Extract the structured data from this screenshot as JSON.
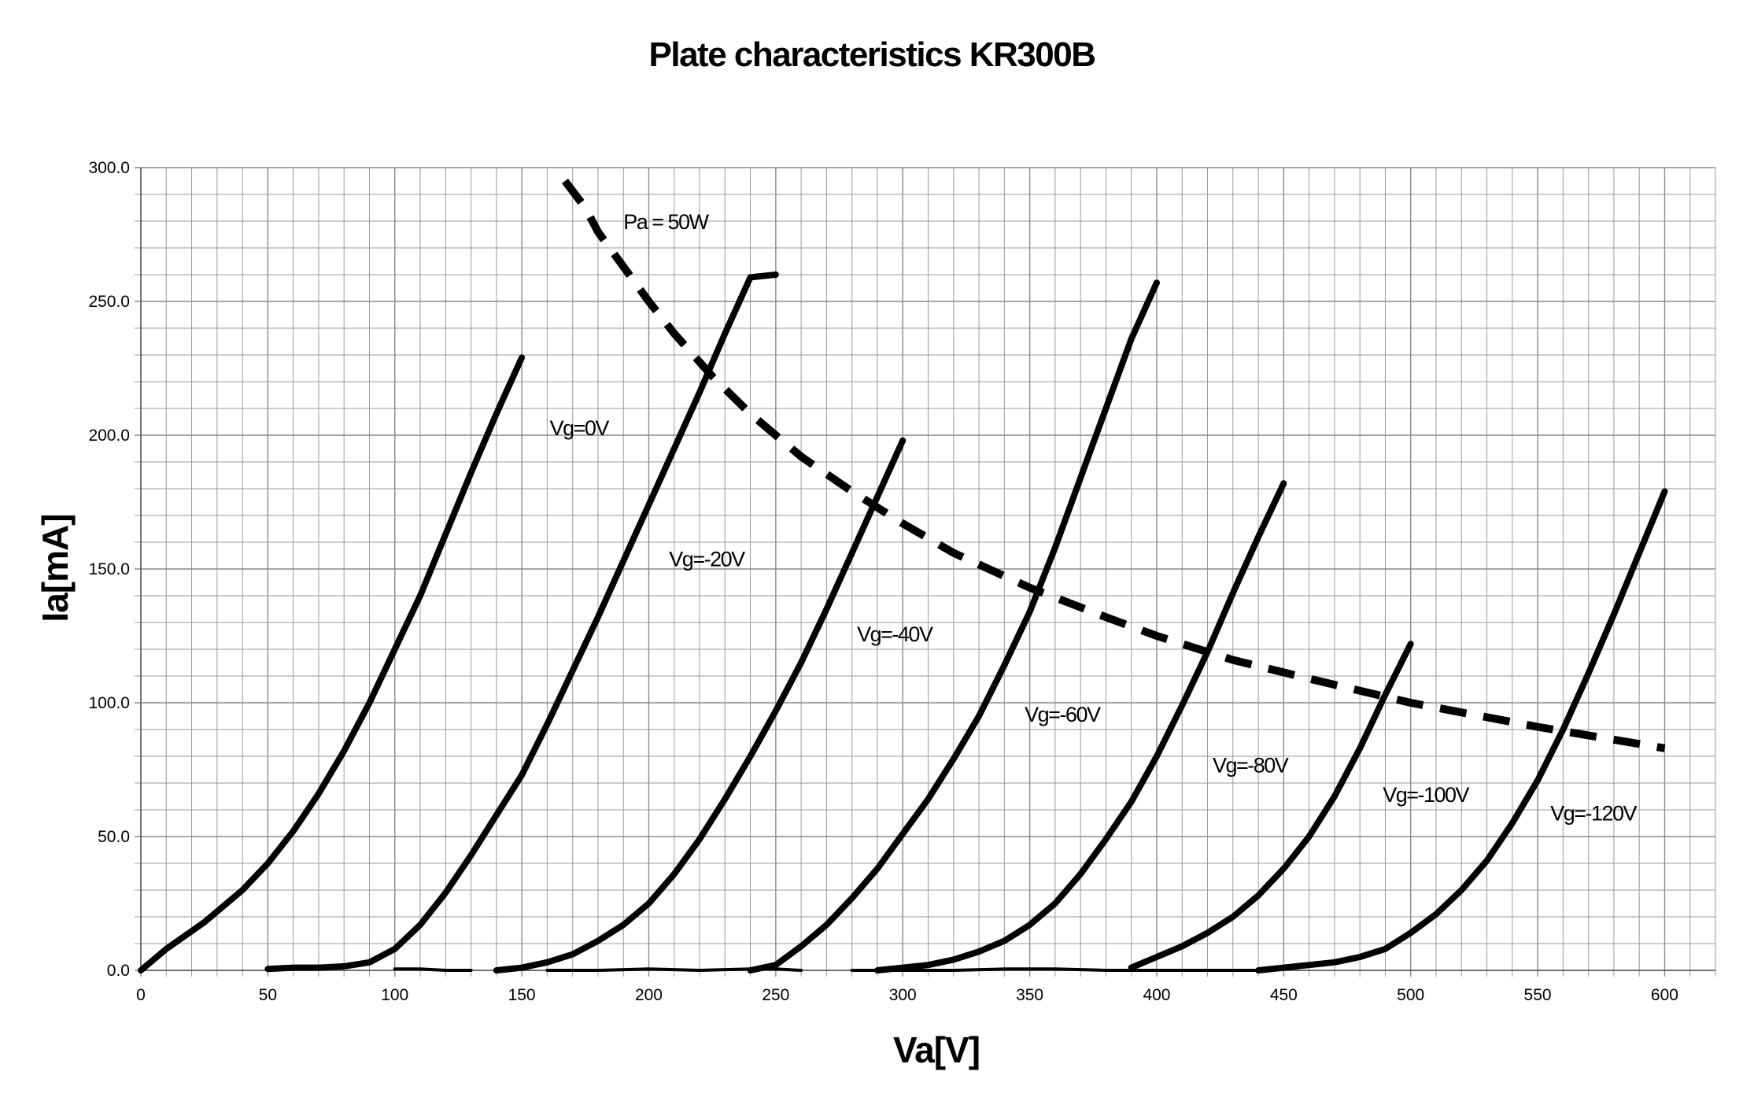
{
  "chart_data": {
    "type": "line",
    "title": "Plate characteristics KR300B",
    "xlabel": "Va[V]",
    "ylabel": "Ia[mA]",
    "xlim": [
      0,
      620
    ],
    "ylim": [
      0,
      300
    ],
    "x_ticks": [
      0,
      50,
      100,
      150,
      200,
      250,
      300,
      350,
      400,
      450,
      500,
      550,
      600
    ],
    "y_ticks": [
      0,
      50,
      100,
      150,
      200,
      250,
      300
    ],
    "x_tick_labels": [
      "0",
      "50",
      "100",
      "150",
      "200",
      "250",
      "300",
      "350",
      "400",
      "450",
      "500",
      "550",
      "600"
    ],
    "y_tick_labels": [
      "0.0",
      "50.0",
      "100.0",
      "150.0",
      "200.0",
      "250.0",
      "300.0"
    ],
    "grid": true,
    "legend": "none",
    "series": [
      {
        "label": "Vg=0V",
        "style": "solid",
        "points": [
          [
            0,
            0
          ],
          [
            10,
            8
          ],
          [
            25,
            18
          ],
          [
            40,
            30
          ],
          [
            50,
            40
          ],
          [
            60,
            52
          ],
          [
            70,
            66
          ],
          [
            80,
            82
          ],
          [
            90,
            100
          ],
          [
            100,
            120
          ],
          [
            110,
            140
          ],
          [
            120,
            163
          ],
          [
            130,
            186
          ],
          [
            140,
            208
          ],
          [
            150,
            229
          ]
        ],
        "cutoff": []
      },
      {
        "label": "Vg=-20V",
        "style": "solid",
        "points": [
          [
            50,
            0.5
          ],
          [
            60,
            1
          ],
          [
            70,
            1
          ],
          [
            80,
            1.5
          ],
          [
            90,
            3
          ],
          [
            100,
            8
          ],
          [
            110,
            17
          ],
          [
            120,
            29
          ],
          [
            130,
            43
          ],
          [
            140,
            58
          ],
          [
            150,
            73
          ],
          [
            160,
            92
          ],
          [
            170,
            112
          ],
          [
            180,
            132
          ],
          [
            190,
            153
          ],
          [
            200,
            174
          ],
          [
            210,
            195
          ],
          [
            220,
            216
          ],
          [
            230,
            238
          ],
          [
            240,
            259
          ],
          [
            250,
            260
          ]
        ],
        "cutoff": [
          [
            100,
            0.5
          ],
          [
            110,
            0.5
          ],
          [
            120,
            0
          ],
          [
            130,
            0
          ]
        ]
      },
      {
        "label": "Vg=-40V",
        "style": "solid",
        "points": [
          [
            140,
            0
          ],
          [
            150,
            1
          ],
          [
            160,
            3
          ],
          [
            170,
            6
          ],
          [
            180,
            11
          ],
          [
            190,
            17
          ],
          [
            200,
            25
          ],
          [
            210,
            36
          ],
          [
            220,
            49
          ],
          [
            230,
            64
          ],
          [
            240,
            80
          ],
          [
            250,
            97
          ],
          [
            260,
            115
          ],
          [
            270,
            135
          ],
          [
            280,
            156
          ],
          [
            290,
            177
          ],
          [
            300,
            198
          ]
        ],
        "cutoff": [
          [
            160,
            0
          ],
          [
            180,
            0
          ],
          [
            200,
            0.5
          ],
          [
            220,
            0
          ],
          [
            240,
            0.5
          ],
          [
            250,
            0.5
          ],
          [
            260,
            0
          ]
        ]
      },
      {
        "label": "Vg=-60V",
        "style": "solid",
        "points": [
          [
            240,
            0
          ],
          [
            250,
            2
          ],
          [
            260,
            9
          ],
          [
            270,
            17
          ],
          [
            280,
            27
          ],
          [
            290,
            38
          ],
          [
            300,
            51
          ],
          [
            310,
            64
          ],
          [
            320,
            79
          ],
          [
            330,
            95
          ],
          [
            340,
            114
          ],
          [
            350,
            134
          ],
          [
            360,
            158
          ],
          [
            370,
            184
          ],
          [
            380,
            210
          ],
          [
            390,
            236
          ],
          [
            400,
            257
          ]
        ],
        "cutoff": [
          [
            280,
            0
          ],
          [
            300,
            0
          ],
          [
            320,
            0
          ],
          [
            340,
            0.5
          ],
          [
            360,
            0.5
          ],
          [
            380,
            0
          ],
          [
            390,
            0
          ]
        ]
      },
      {
        "label": "Vg=-80V",
        "style": "solid",
        "points": [
          [
            290,
            0
          ],
          [
            300,
            1
          ],
          [
            310,
            2
          ],
          [
            320,
            4
          ],
          [
            330,
            7
          ],
          [
            340,
            11
          ],
          [
            350,
            17
          ],
          [
            360,
            25
          ],
          [
            370,
            36
          ],
          [
            380,
            49
          ],
          [
            390,
            63
          ],
          [
            400,
            80
          ],
          [
            410,
            99
          ],
          [
            420,
            119
          ],
          [
            430,
            141
          ],
          [
            440,
            162
          ],
          [
            450,
            182
          ]
        ],
        "cutoff": [
          [
            390,
            0
          ],
          [
            400,
            0
          ],
          [
            410,
            0
          ]
        ]
      },
      {
        "label": "Vg=-100V",
        "style": "solid",
        "points": [
          [
            390,
            1
          ],
          [
            400,
            5
          ],
          [
            410,
            9
          ],
          [
            420,
            14
          ],
          [
            430,
            20
          ],
          [
            440,
            28
          ],
          [
            450,
            38
          ],
          [
            460,
            50
          ],
          [
            470,
            65
          ],
          [
            480,
            83
          ],
          [
            490,
            103
          ],
          [
            500,
            122
          ]
        ],
        "cutoff": [
          [
            400,
            0
          ],
          [
            420,
            0
          ],
          [
            440,
            0
          ]
        ]
      },
      {
        "label": "Vg=-120V",
        "style": "solid",
        "points": [
          [
            440,
            0
          ],
          [
            450,
            1
          ],
          [
            460,
            2
          ],
          [
            470,
            3
          ],
          [
            480,
            5
          ],
          [
            490,
            8
          ],
          [
            500,
            14
          ],
          [
            510,
            21
          ],
          [
            520,
            30
          ],
          [
            530,
            41
          ],
          [
            540,
            55
          ],
          [
            550,
            71
          ],
          [
            560,
            90
          ],
          [
            570,
            111
          ],
          [
            580,
            133
          ],
          [
            590,
            156
          ],
          [
            600,
            179
          ]
        ],
        "cutoff": []
      },
      {
        "label": "Pa = 50W",
        "style": "dashed",
        "points": [
          [
            167,
            295
          ],
          [
            175,
            285
          ],
          [
            180,
            276
          ],
          [
            190,
            263
          ],
          [
            200,
            250
          ],
          [
            210,
            238
          ],
          [
            225,
            222
          ],
          [
            240,
            208
          ],
          [
            260,
            192
          ],
          [
            280,
            179
          ],
          [
            300,
            167
          ],
          [
            320,
            156
          ],
          [
            350,
            143
          ],
          [
            380,
            132
          ],
          [
            400,
            125
          ],
          [
            430,
            116
          ],
          [
            460,
            109
          ],
          [
            500,
            100
          ],
          [
            550,
            91
          ],
          [
            600,
            83
          ]
        ],
        "cutoff": []
      }
    ],
    "annotations": [
      {
        "text": "Vg=0V",
        "x": 161,
        "y": 200
      },
      {
        "text": "Vg=-20V",
        "x": 208,
        "y": 151
      },
      {
        "text": "Vg=-40V",
        "x": 282,
        "y": 123
      },
      {
        "text": "Vg=-60V",
        "x": 348,
        "y": 93
      },
      {
        "text": "Vg=-80V",
        "x": 422,
        "y": 74
      },
      {
        "text": "Vg=-100V",
        "x": 489,
        "y": 63
      },
      {
        "text": "Vg=-120V",
        "x": 555,
        "y": 56
      },
      {
        "text": "Pa = 50W",
        "x": 190,
        "y": 277
      }
    ]
  }
}
